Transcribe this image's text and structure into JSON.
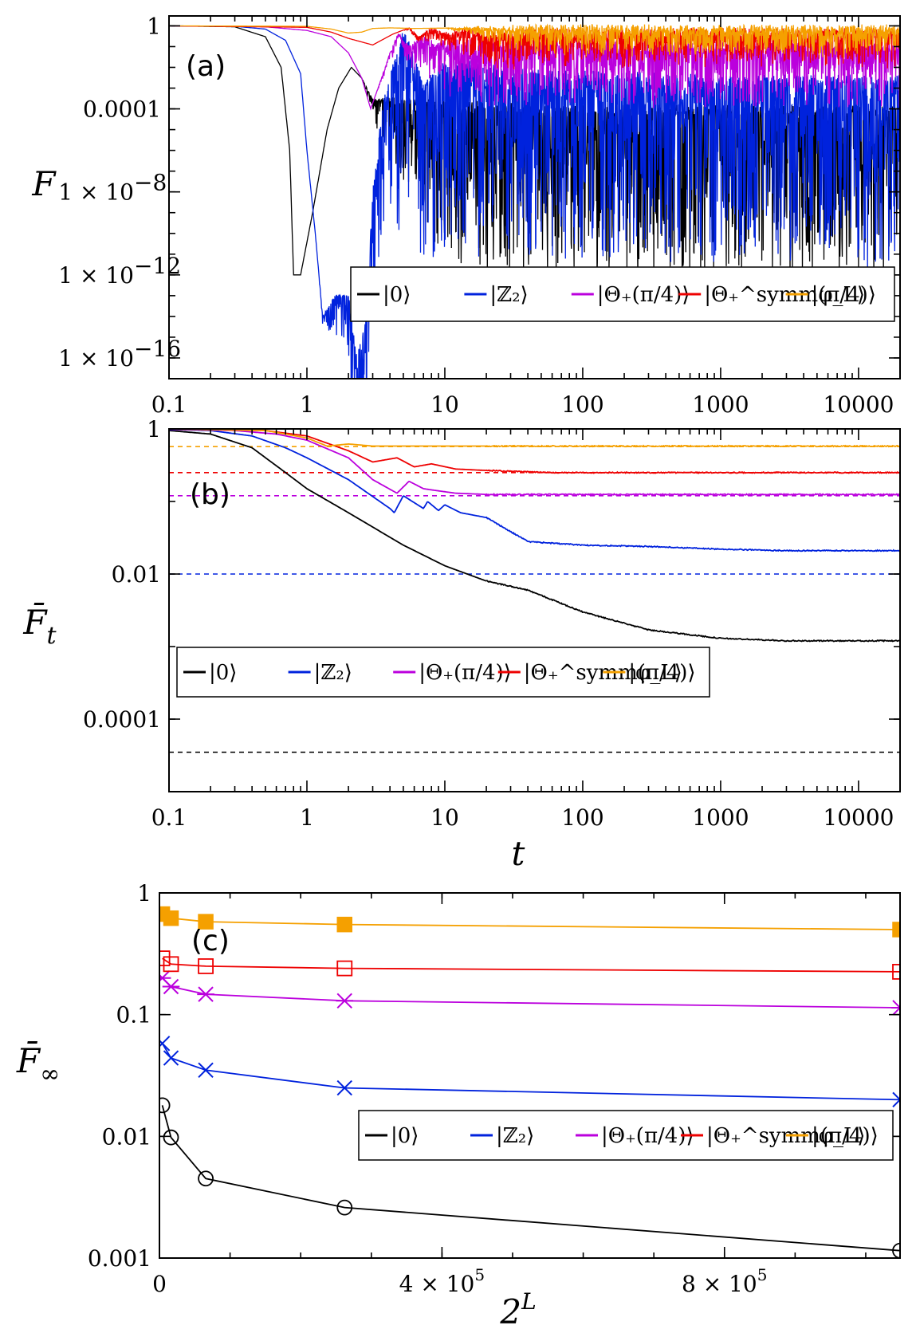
{
  "chart_data": [
    {
      "panel": "a",
      "type": "line",
      "label": "(a)",
      "ylabel": "F",
      "xlabel": "",
      "xscale": "log",
      "yscale": "log",
      "xlim": [
        0.1,
        20000
      ],
      "ylim": [
        1e-17,
        3
      ],
      "xticks": [
        0.1,
        1,
        10,
        100,
        1000,
        10000
      ],
      "xtick_labels": [
        "0.1",
        "1",
        "10",
        "100",
        "1000",
        "10000"
      ],
      "yticks": [
        1,
        0.0001,
        1e-08,
        1e-12,
        1e-16
      ],
      "ytick_labels": [
        "1",
        "0.0001",
        "1 × 10",
        "1 × 10",
        "1 × 10"
      ],
      "ytick_exponents": [
        "",
        "",
        "−8",
        "−12",
        "−16"
      ],
      "legend_position": "lower-right",
      "series": [
        {
          "name": "|0⟩",
          "color": "#000000",
          "noise_from": 2.5,
          "noise_amp": 8,
          "x": [
            0.1,
            0.3,
            0.5,
            0.65,
            0.75,
            0.8,
            0.9,
            1.1,
            1.4,
            1.7,
            2.1,
            2.5,
            3,
            4,
            6,
            10,
            20,
            50,
            100,
            1000,
            20000
          ],
          "y": [
            1,
            0.9,
            0.3,
            0.01,
            1e-06,
            1e-12,
            1e-12,
            1e-09,
            1e-05,
            0.001,
            0.01,
            0.003,
            0.0003,
            0.0003,
            0.0003,
            0.0002,
            0.00015,
            0.0001,
            0.0001,
            0.0001,
            0.0001
          ]
        },
        {
          "name": "|ℤ₂⟩",
          "color": "#0022dd",
          "noise_from": 1.2,
          "noise_amp": 9,
          "x": [
            0.1,
            0.3,
            0.5,
            0.7,
            0.9,
            1.0,
            1.15,
            1.3,
            1.6,
            2.0,
            2.3,
            2.7,
            3.0,
            3.5,
            4.2,
            5,
            6,
            7,
            9,
            12,
            20,
            50,
            100,
            1000,
            20000
          ],
          "y": [
            1,
            0.95,
            0.7,
            0.2,
            0.005,
            1e-06,
            1e-10,
            1e-14,
            1e-13,
            1e-13,
            1e-16,
            1e-14,
            1e-08,
            0.0001,
            0.01,
            0.5,
            0.05,
            0.001,
            0.01,
            0.02,
            0.01,
            0.005,
            0.005,
            0.003,
            0.003
          ]
        },
        {
          "name": "|Θ₊(π/4)⟩",
          "color": "#bb00dd",
          "noise_from": 3.2,
          "noise_amp": 3,
          "x": [
            0.1,
            0.5,
            1.0,
            1.5,
            2.0,
            2.5,
            2.9,
            3.4,
            4.0,
            4.6,
            5.5,
            7,
            9,
            12,
            20,
            50,
            100,
            1000,
            20000
          ],
          "y": [
            1,
            0.9,
            0.6,
            0.3,
            0.05,
            0.003,
            0.0001,
            0.002,
            0.05,
            0.4,
            0.1,
            0.3,
            0.15,
            0.2,
            0.15,
            0.15,
            0.15,
            0.12,
            0.12
          ]
        },
        {
          "name": "|Θ₊^symm(π/4)⟩",
          "color": "#ee0000",
          "noise_from": 5,
          "noise_amp": 1.6,
          "x": [
            0.1,
            1.0,
            1.5,
            2.0,
            3.0,
            4.2,
            5.5,
            6.5,
            8,
            10,
            14,
            20,
            50,
            100,
            1000,
            20000
          ],
          "y": [
            1,
            0.85,
            0.5,
            0.25,
            0.12,
            0.4,
            0.8,
            0.3,
            0.7,
            0.4,
            0.6,
            0.4,
            0.5,
            0.5,
            0.5,
            0.5
          ]
        },
        {
          "name": "|φ_L⟩",
          "color": "#f5a000",
          "noise_from": 10,
          "noise_amp": 1.25,
          "x": [
            0.1,
            1.0,
            1.5,
            2.0,
            2.5,
            3.0,
            4.0,
            6.0,
            10,
            100,
            20000
          ],
          "y": [
            1,
            0.95,
            0.7,
            0.45,
            0.5,
            0.75,
            0.8,
            0.75,
            0.78,
            0.75,
            0.75
          ]
        }
      ]
    },
    {
      "panel": "b",
      "type": "line",
      "label": "(b)",
      "ylabel": "F̄",
      "ylabel_sub": "t",
      "xlabel": "t",
      "xscale": "log",
      "yscale": "log",
      "xlim": [
        0.1,
        20000
      ],
      "ylim": [
        1e-05,
        1
      ],
      "xticks": [
        0.1,
        1,
        10,
        100,
        1000,
        10000
      ],
      "xtick_labels": [
        "0.1",
        "1",
        "10",
        "100",
        "1000",
        "10000"
      ],
      "yticks": [
        1,
        0.01,
        0.0001
      ],
      "ytick_labels": [
        "1",
        "0.01",
        "0.0001"
      ],
      "legend_position": "lower-left",
      "series": [
        {
          "name": "|0⟩",
          "color": "#000000",
          "x": [
            0.1,
            0.2,
            0.4,
            0.7,
            1,
            2,
            5,
            10,
            20,
            40,
            100,
            300,
            1000,
            3000,
            20000
          ],
          "y": [
            0.95,
            0.85,
            0.55,
            0.25,
            0.15,
            0.07,
            0.025,
            0.013,
            0.008,
            0.006,
            0.003,
            0.0017,
            0.0013,
            0.0012,
            0.0012
          ]
        },
        {
          "name": "|ℤ₂⟩",
          "color": "#0022dd",
          "x": [
            0.1,
            0.2,
            0.4,
            0.7,
            1,
            2,
            4,
            4.3,
            5,
            7,
            7.5,
            9,
            10,
            13,
            20,
            40,
            100,
            300,
            1000,
            3000,
            20000
          ],
          "y": [
            0.98,
            0.95,
            0.8,
            0.55,
            0.4,
            0.2,
            0.08,
            0.07,
            0.12,
            0.08,
            0.1,
            0.075,
            0.09,
            0.07,
            0.06,
            0.028,
            0.025,
            0.024,
            0.022,
            0.021,
            0.021
          ]
        },
        {
          "name": "|Θ₊(π/4)⟩",
          "color": "#bb00dd",
          "x": [
            0.1,
            0.3,
            0.6,
            1,
            2,
            3,
            4.5,
            5.5,
            7,
            9,
            12,
            20,
            50,
            20000
          ],
          "y": [
            0.99,
            0.95,
            0.85,
            0.7,
            0.4,
            0.2,
            0.13,
            0.19,
            0.15,
            0.14,
            0.13,
            0.125,
            0.125,
            0.125
          ]
        },
        {
          "name": "|Θ₊^symm(π/4)⟩",
          "color": "#ee0000",
          "x": [
            0.1,
            0.5,
            1,
            2,
            3,
            4.5,
            6,
            8,
            12,
            18,
            30,
            60,
            100,
            20000
          ],
          "y": [
            1,
            0.95,
            0.8,
            0.5,
            0.35,
            0.4,
            0.3,
            0.33,
            0.28,
            0.27,
            0.26,
            0.25,
            0.25,
            0.25
          ]
        },
        {
          "name": "|φ_L⟩",
          "color": "#f5a000",
          "x": [
            0.1,
            0.5,
            1,
            1.4,
            2,
            3,
            5,
            20000
          ],
          "y": [
            1,
            0.95,
            0.75,
            0.58,
            0.62,
            0.58,
            0.58,
            0.58
          ]
        }
      ],
      "reference_lines": [
        {
          "name": "|0⟩",
          "color": "#000000",
          "y": 3.5e-05
        },
        {
          "name": "|ℤ₂⟩",
          "color": "#0022dd",
          "y": 0.01
        },
        {
          "name": "|Θ₊(π/4)⟩",
          "color": "#bb00dd",
          "y": 0.12
        },
        {
          "name": "|Θ₊^symm(π/4)⟩",
          "color": "#ee0000",
          "y": 0.25
        },
        {
          "name": "|φ_L⟩",
          "color": "#f5a000",
          "y": 0.57
        }
      ]
    },
    {
      "panel": "c",
      "type": "line",
      "label": "(c)",
      "ylabel": "F̄",
      "ylabel_sub": "∞",
      "xlabel": "2",
      "xlabel_sup": "L",
      "xscale": "linear",
      "yscale": "log",
      "xlim": [
        0,
        1048576
      ],
      "ylim": [
        0.001,
        1
      ],
      "xticks": [
        0,
        400000,
        800000
      ],
      "xtick_labels": [
        "0",
        "4 × 10",
        "8 × 10"
      ],
      "xtick_exponents": [
        "",
        "5",
        "5"
      ],
      "yticks": [
        1,
        0.1,
        0.01,
        0.001
      ],
      "ytick_labels": [
        "1",
        "0.1",
        "0.01",
        "0.001"
      ],
      "legend_position": "center-right",
      "series": [
        {
          "name": "|0⟩",
          "color": "#000000",
          "marker": "circle",
          "x": [
            4096,
            16384,
            65536,
            262144,
            1048576
          ],
          "y": [
            0.018,
            0.0098,
            0.0045,
            0.0026,
            0.00115
          ]
        },
        {
          "name": "|ℤ₂⟩",
          "color": "#0022dd",
          "marker": "x",
          "x": [
            4096,
            16384,
            65536,
            262144,
            1048576
          ],
          "y": [
            0.058,
            0.044,
            0.035,
            0.025,
            0.02
          ]
        },
        {
          "name": "|Θ₊(π/4)⟩",
          "color": "#bb00dd",
          "marker": "asterisk",
          "x": [
            4096,
            16384,
            65536,
            262144,
            1048576
          ],
          "y": [
            0.2,
            0.17,
            0.147,
            0.13,
            0.114
          ]
        },
        {
          "name": "|Θ₊^symm(π/4)⟩",
          "color": "#ee0000",
          "marker": "open-square",
          "x": [
            4096,
            16384,
            65536,
            262144,
            1048576
          ],
          "y": [
            0.29,
            0.26,
            0.25,
            0.24,
            0.225
          ]
        },
        {
          "name": "|φ_L⟩",
          "color": "#f5a000",
          "marker": "filled-square",
          "x": [
            4096,
            16384,
            65536,
            262144,
            1048576
          ],
          "y": [
            0.67,
            0.62,
            0.58,
            0.55,
            0.5
          ]
        }
      ]
    }
  ]
}
